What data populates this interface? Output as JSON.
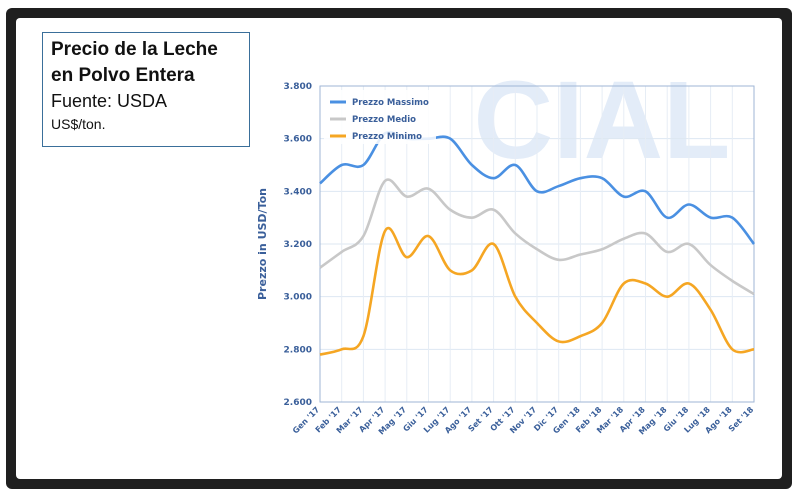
{
  "caption": {
    "title": "Precio de la Leche\nen Polvo Entera",
    "source": "Fuente: USDA",
    "unit": "US$/ton."
  },
  "watermark": "CIAL",
  "chart_data": {
    "type": "line",
    "ylabel": "Prezzo in USD/Ton",
    "ylim": [
      2600,
      3800
    ],
    "yticks": [
      "2.600",
      "2.800",
      "3.000",
      "3.200",
      "3.400",
      "3.600",
      "3.800"
    ],
    "ytick_values": [
      2600,
      2800,
      3000,
      3200,
      3400,
      3600,
      3800
    ],
    "categories": [
      "Gen '17",
      "Feb '17",
      "Mar '17",
      "Apr '17",
      "Mag '17",
      "Giu '17",
      "Lug '17",
      "Ago '17",
      "Set '17",
      "Ott '17",
      "Nov '17",
      "Dic '17",
      "Gen '18",
      "Feb '18",
      "Mar '18",
      "Apr '18",
      "Mag '18",
      "Giu '18",
      "Lug '18",
      "Ago '18",
      "Set '18"
    ],
    "legend_position": "top-left",
    "grid": true,
    "series": [
      {
        "name": "Prezzo Massimo",
        "color": "#4a90e2",
        "values": [
          3430,
          3500,
          3500,
          3620,
          3600,
          3600,
          3600,
          3500,
          3450,
          3500,
          3400,
          3420,
          3450,
          3450,
          3380,
          3400,
          3300,
          3350,
          3300,
          3300,
          3200
        ]
      },
      {
        "name": "Prezzo Medio",
        "color": "#c8c8c8",
        "values": [
          3110,
          3170,
          3230,
          3440,
          3380,
          3410,
          3330,
          3300,
          3330,
          3240,
          3180,
          3140,
          3160,
          3180,
          3220,
          3240,
          3170,
          3200,
          3120,
          3060,
          3010
        ]
      },
      {
        "name": "Prezzo Minimo",
        "color": "#f5a623",
        "values": [
          2780,
          2800,
          2850,
          3250,
          3150,
          3230,
          3100,
          3100,
          3200,
          3000,
          2900,
          2830,
          2850,
          2900,
          3050,
          3050,
          3000,
          3050,
          2950,
          2800,
          2800
        ]
      }
    ]
  }
}
